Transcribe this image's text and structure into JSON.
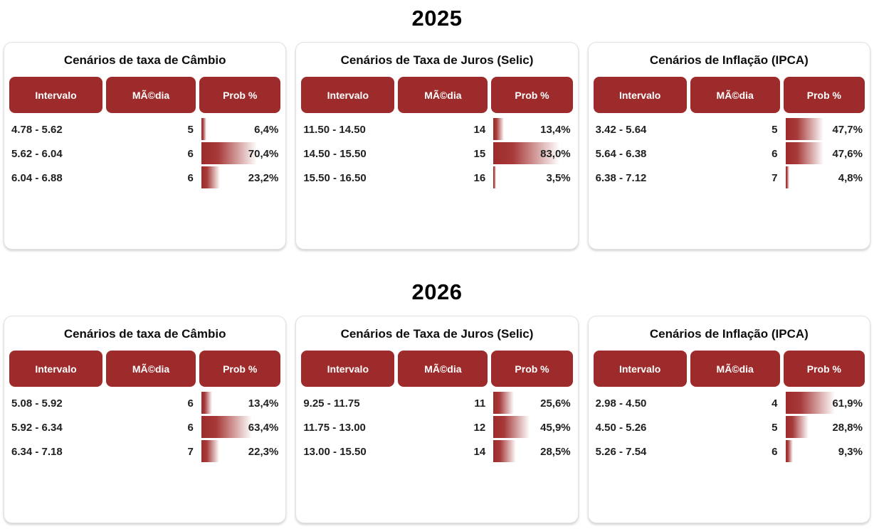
{
  "colors": {
    "header_background": "#9e2b2b",
    "bar_gradient_start": "#9e2b2b",
    "header_text": "#ffffff",
    "row_text": "#212121"
  },
  "years": [
    "2025",
    "2026"
  ],
  "chart_data": [
    {
      "type": "table",
      "section_year": "2025",
      "title": "Cenários de taxa de Câmbio",
      "columns": [
        "Intervalo",
        "MÃ©dia",
        "Prob %"
      ],
      "rows": [
        {
          "intervalo": "4.78 - 5.62",
          "media": "5",
          "prob_label": "6,4%",
          "prob_pct": 6.4
        },
        {
          "intervalo": "5.62 - 6.04",
          "media": "6",
          "prob_label": "70,4%",
          "prob_pct": 70.4
        },
        {
          "intervalo": "6.04 - 6.88",
          "media": "6",
          "prob_label": "23,2%",
          "prob_pct": 23.2
        }
      ]
    },
    {
      "type": "table",
      "section_year": "2025",
      "title": "Cenários de Taxa de Juros (Selic)",
      "columns": [
        "Intervalo",
        "MÃ©dia",
        "Prob %"
      ],
      "rows": [
        {
          "intervalo": "11.50 - 14.50",
          "media": "14",
          "prob_label": "13,4%",
          "prob_pct": 13.4
        },
        {
          "intervalo": "14.50 - 15.50",
          "media": "15",
          "prob_label": "83,0%",
          "prob_pct": 83.0
        },
        {
          "intervalo": "15.50 - 16.50",
          "media": "16",
          "prob_label": "3,5%",
          "prob_pct": 3.5
        }
      ]
    },
    {
      "type": "table",
      "section_year": "2025",
      "title": "Cenários de Inflação (IPCA)",
      "columns": [
        "Intervalo",
        "MÃ©dia",
        "Prob %"
      ],
      "rows": [
        {
          "intervalo": "3.42 - 5.64",
          "media": "5",
          "prob_label": "47,7%",
          "prob_pct": 47.7
        },
        {
          "intervalo": "5.64 - 6.38",
          "media": "6",
          "prob_label": "47,6%",
          "prob_pct": 47.6
        },
        {
          "intervalo": "6.38 - 7.12",
          "media": "7",
          "prob_label": "4,8%",
          "prob_pct": 4.8
        }
      ]
    },
    {
      "type": "table",
      "section_year": "2026",
      "title": "Cenários de taxa de Câmbio",
      "columns": [
        "Intervalo",
        "MÃ©dia",
        "Prob %"
      ],
      "rows": [
        {
          "intervalo": "5.08 - 5.92",
          "media": "6",
          "prob_label": "13,4%",
          "prob_pct": 13.4
        },
        {
          "intervalo": "5.92 - 6.34",
          "media": "6",
          "prob_label": "63,4%",
          "prob_pct": 63.4
        },
        {
          "intervalo": "6.34 - 7.18",
          "media": "7",
          "prob_label": "22,3%",
          "prob_pct": 22.3
        }
      ]
    },
    {
      "type": "table",
      "section_year": "2026",
      "title": "Cenários de Taxa de Juros (Selic)",
      "columns": [
        "Intervalo",
        "MÃ©dia",
        "Prob %"
      ],
      "rows": [
        {
          "intervalo": "9.25 - 11.75",
          "media": "11",
          "prob_label": "25,6%",
          "prob_pct": 25.6
        },
        {
          "intervalo": "11.75 - 13.00",
          "media": "12",
          "prob_label": "45,9%",
          "prob_pct": 45.9
        },
        {
          "intervalo": "13.00 - 15.50",
          "media": "14",
          "prob_label": "28,5%",
          "prob_pct": 28.5
        }
      ]
    },
    {
      "type": "table",
      "section_year": "2026",
      "title": "Cenários de Inflação (IPCA)",
      "columns": [
        "Intervalo",
        "MÃ©dia",
        "Prob %"
      ],
      "rows": [
        {
          "intervalo": "2.98 - 4.50",
          "media": "4",
          "prob_label": "61,9%",
          "prob_pct": 61.9
        },
        {
          "intervalo": "4.50 - 5.26",
          "media": "5",
          "prob_label": "28,8%",
          "prob_pct": 28.8
        },
        {
          "intervalo": "5.26 - 7.54",
          "media": "6",
          "prob_label": "9,3%",
          "prob_pct": 9.3
        }
      ]
    }
  ]
}
